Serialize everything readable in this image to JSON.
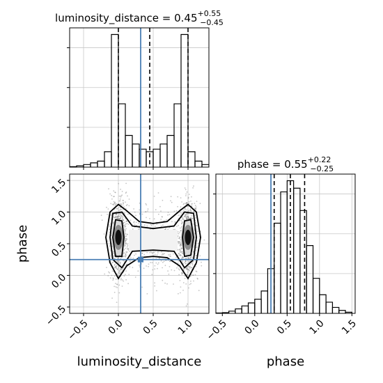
{
  "chart_data": {
    "type": "corner",
    "parameters": [
      "luminosity_distance",
      "phase"
    ],
    "truths": {
      "luminosity_distance": 0.32,
      "phase": 0.25
    },
    "colors": {
      "truth": "#4a7fb5",
      "hist": "#000000",
      "grid": "#c8c8c8",
      "scatter": "#7f7f7f",
      "frame": "#000000"
    },
    "panels": [
      {
        "id": "luminosity_distance-1d",
        "type": "histogram",
        "title": "luminosity_distance = 0.45",
        "title_sup": "+0.55",
        "title_sub": "−0.45",
        "x_range": [
          -0.7,
          1.3
        ],
        "bin_edges": [
          -0.7,
          -0.6,
          -0.5,
          -0.4,
          -0.3,
          -0.2,
          -0.1,
          0.0,
          0.1,
          0.2,
          0.3,
          0.4,
          0.5,
          0.6,
          0.7,
          0.8,
          0.9,
          1.0,
          1.1,
          1.2,
          1.3
        ],
        "counts": [
          0.5,
          1.5,
          3,
          5,
          7,
          18,
          155,
          74,
          37,
          27,
          21,
          18,
          21,
          27,
          37,
          74,
          155,
          18,
          7,
          3
        ],
        "quantiles": [
          0.0,
          0.45,
          1.0
        ],
        "grid": true
      },
      {
        "id": "phase-1d",
        "type": "histogram",
        "title": "phase = 0.55",
        "title_sup": "+0.22",
        "title_sub": "−0.25",
        "x_range": [
          -0.6,
          1.55
        ],
        "x_ticks": [
          "−0.5",
          "0.0",
          "0.5",
          "1.0",
          "1.5"
        ],
        "bin_edges": [
          -0.6,
          -0.5,
          -0.4,
          -0.3,
          -0.2,
          -0.1,
          0.0,
          0.1,
          0.2,
          0.3,
          0.4,
          0.5,
          0.6,
          0.7,
          0.8,
          0.9,
          1.0,
          1.1,
          1.2,
          1.3,
          1.4,
          1.5
        ],
        "counts": [
          0.5,
          1,
          3,
          6,
          10,
          14,
          19,
          30,
          60,
          121,
          163,
          178,
          168,
          138,
          91,
          47,
          25,
          15,
          8,
          4,
          1.5
        ],
        "quantiles": [
          0.3,
          0.55,
          0.77
        ],
        "grid": true,
        "x_label": "phase"
      },
      {
        "id": "luminosity_distance-phase-2d",
        "type": "scatter_contour",
        "x_range": [
          -0.7,
          1.3
        ],
        "y_range": [
          -0.6,
          1.6
        ],
        "x_ticks": [
          "−0.5",
          "0.0",
          "0.5",
          "1.0"
        ],
        "y_ticks": [
          "−0.5",
          "0.0",
          "0.5",
          "1.0",
          "1.5"
        ],
        "x_label": "luminosity_distance",
        "y_label": "phase",
        "grid": true,
        "modes": [
          {
            "x": 0.0,
            "y": 0.6
          },
          {
            "x": 1.0,
            "y": 0.6
          }
        ]
      }
    ]
  }
}
